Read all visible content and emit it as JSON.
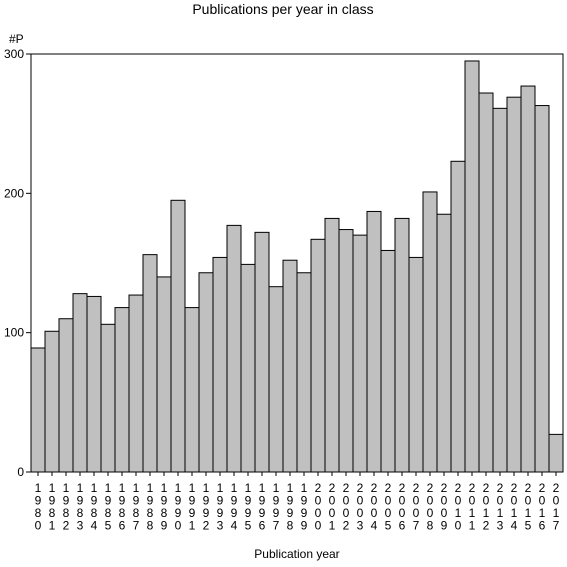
{
  "chart_data": {
    "type": "bar",
    "title": "Publications per year in class",
    "ylabel": "#P",
    "xlabel": "Publication year",
    "ylim": [
      0,
      300
    ],
    "yticks": [
      0,
      100,
      200,
      300
    ],
    "grid": false,
    "bar_color": "#c0c0c0",
    "categories": [
      "1980",
      "1981",
      "1982",
      "1983",
      "1984",
      "1985",
      "1986",
      "1987",
      "1988",
      "1989",
      "1990",
      "1991",
      "1992",
      "1993",
      "1994",
      "1995",
      "1996",
      "1997",
      "1998",
      "1999",
      "2000",
      "2001",
      "2002",
      "2003",
      "2004",
      "2005",
      "2006",
      "2007",
      "2008",
      "2009",
      "2010",
      "2011",
      "2012",
      "2013",
      "2014",
      "2015",
      "2016",
      "2017"
    ],
    "values": [
      89,
      101,
      110,
      128,
      126,
      106,
      118,
      127,
      156,
      140,
      195,
      118,
      143,
      154,
      177,
      149,
      172,
      133,
      152,
      143,
      167,
      182,
      174,
      170,
      187,
      159,
      182,
      154,
      201,
      185,
      223,
      295,
      272,
      261,
      269,
      277,
      263,
      27
    ]
  }
}
